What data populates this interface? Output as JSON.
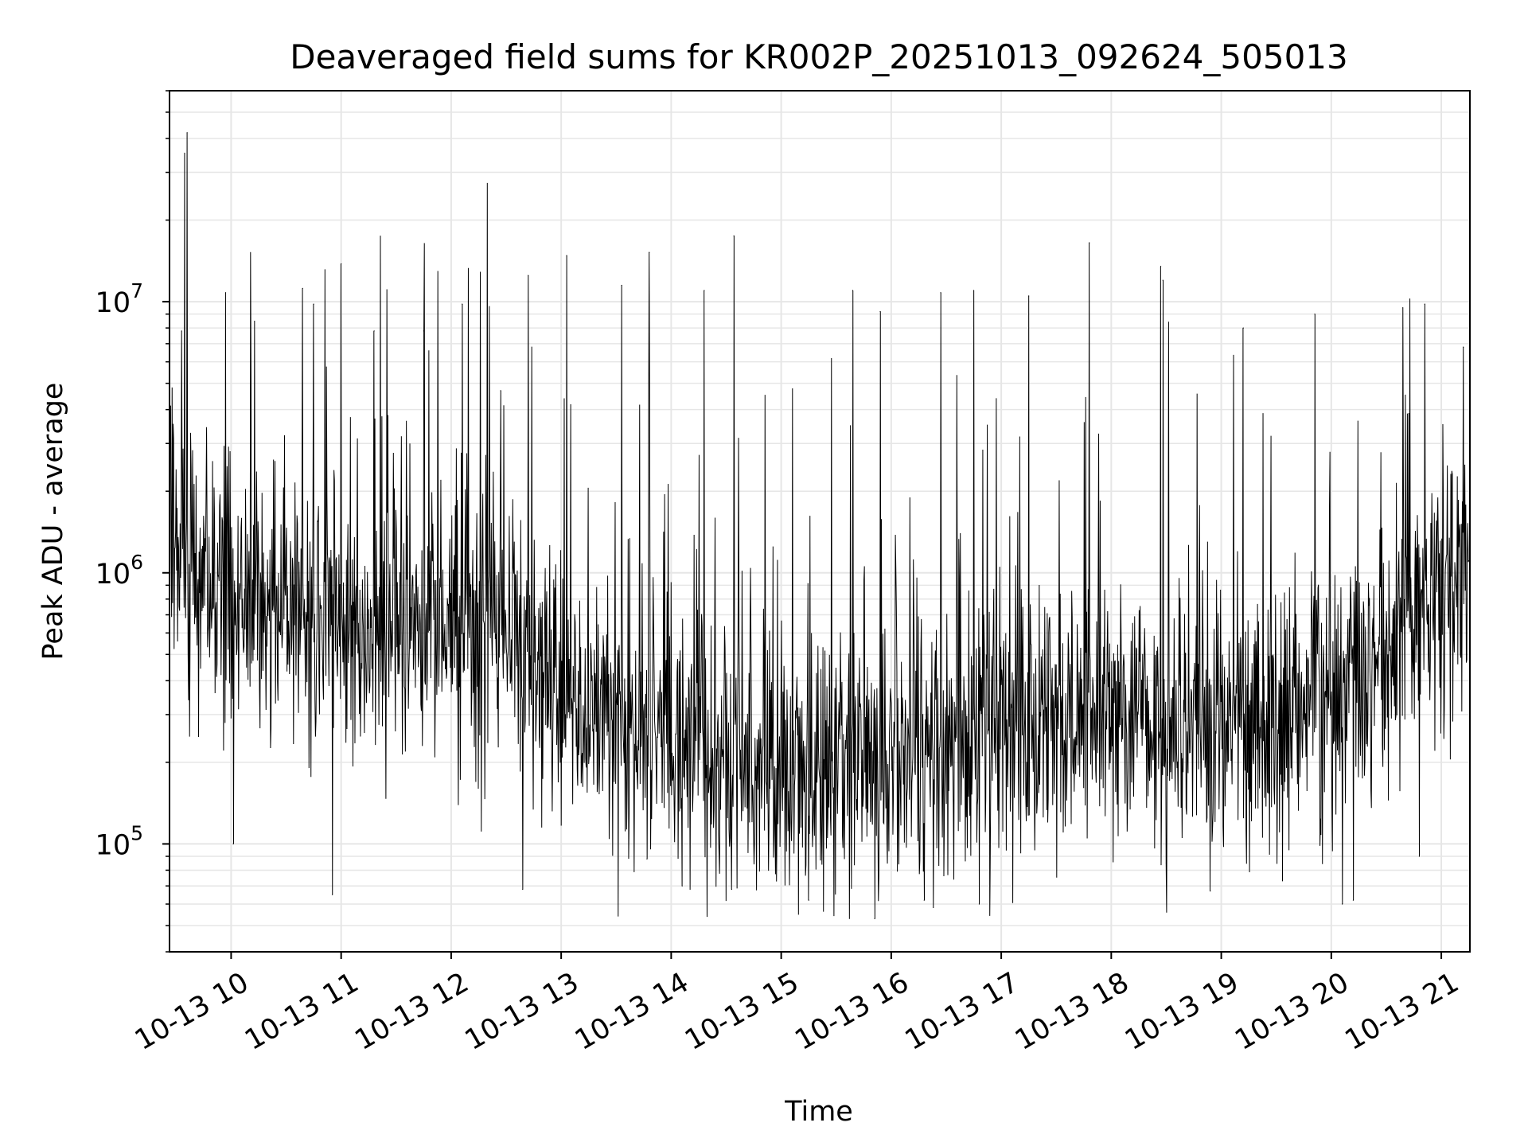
{
  "chart_data": {
    "type": "line",
    "title": "Deaveraged field sums for KR002P_20251013_092624_505013",
    "xlabel": "Time",
    "ylabel": "Peak ADU - average",
    "yscale": "log",
    "ylim": [
      40000,
      60000000
    ],
    "xlim_hours": [
      9.44,
      21.26
    ],
    "grid": true,
    "grid_color": "#e6e6e6",
    "line_color": "#000000",
    "x_ticks": [
      {
        "hour": 10,
        "label": "10-13 10"
      },
      {
        "hour": 11,
        "label": "10-13 11"
      },
      {
        "hour": 12,
        "label": "10-13 12"
      },
      {
        "hour": 13,
        "label": "10-13 13"
      },
      {
        "hour": 14,
        "label": "10-13 14"
      },
      {
        "hour": 15,
        "label": "10-13 15"
      },
      {
        "hour": 16,
        "label": "10-13 16"
      },
      {
        "hour": 17,
        "label": "10-13 17"
      },
      {
        "hour": 18,
        "label": "10-13 18"
      },
      {
        "hour": 19,
        "label": "10-13 19"
      },
      {
        "hour": 20,
        "label": "10-13 20"
      },
      {
        "hour": 21,
        "label": "10-13 21"
      }
    ],
    "y_major_ticks": [
      {
        "value": 100000,
        "base": "10",
        "exp": "5"
      },
      {
        "value": 1000000,
        "base": "10",
        "exp": "6"
      },
      {
        "value": 10000000,
        "base": "10",
        "exp": "7"
      }
    ],
    "baseline_profile": [
      {
        "hour": 9.45,
        "value": 1500000
      },
      {
        "hour": 9.6,
        "value": 1000000
      },
      {
        "hour": 10.0,
        "value": 850000
      },
      {
        "hour": 10.5,
        "value": 650000
      },
      {
        "hour": 11.0,
        "value": 700000
      },
      {
        "hour": 11.5,
        "value": 600000
      },
      {
        "hour": 12.0,
        "value": 650000
      },
      {
        "hour": 12.6,
        "value": 600000
      },
      {
        "hour": 13.0,
        "value": 350000
      },
      {
        "hour": 13.5,
        "value": 300000
      },
      {
        "hour": 14.0,
        "value": 250000
      },
      {
        "hour": 14.5,
        "value": 200000
      },
      {
        "hour": 15.0,
        "value": 180000
      },
      {
        "hour": 15.5,
        "value": 190000
      },
      {
        "hour": 16.0,
        "value": 200000
      },
      {
        "hour": 16.5,
        "value": 230000
      },
      {
        "hour": 17.0,
        "value": 280000
      },
      {
        "hour": 17.5,
        "value": 300000
      },
      {
        "hour": 18.0,
        "value": 290000
      },
      {
        "hour": 18.5,
        "value": 270000
      },
      {
        "hour": 19.0,
        "value": 250000
      },
      {
        "hour": 19.5,
        "value": 280000
      },
      {
        "hour": 20.0,
        "value": 350000
      },
      {
        "hour": 20.5,
        "value": 500000
      },
      {
        "hour": 21.0,
        "value": 900000
      },
      {
        "hour": 21.25,
        "value": 1300000
      }
    ],
    "peaks": [
      {
        "hour": 9.6,
        "value": 42000000
      },
      {
        "hour": 9.55,
        "value": 7800000
      },
      {
        "hour": 9.95,
        "value": 10800000
      },
      {
        "hour": 10.65,
        "value": 11200000
      },
      {
        "hour": 10.75,
        "value": 9800000
      },
      {
        "hour": 11.0,
        "value": 13800000
      },
      {
        "hour": 11.3,
        "value": 7800000
      },
      {
        "hour": 11.75,
        "value": 7800000
      },
      {
        "hour": 12.1,
        "value": 9800000
      },
      {
        "hour": 12.45,
        "value": 4700000
      },
      {
        "hour": 12.7,
        "value": 12500000
      },
      {
        "hour": 13.05,
        "value": 14800000
      },
      {
        "hour": 13.55,
        "value": 11500000
      },
      {
        "hour": 13.8,
        "value": 15200000
      },
      {
        "hour": 14.3,
        "value": 11000000
      },
      {
        "hour": 14.57,
        "value": 17500000
      },
      {
        "hour": 15.65,
        "value": 11000000
      },
      {
        "hour": 15.9,
        "value": 9200000
      },
      {
        "hour": 16.45,
        "value": 10800000
      },
      {
        "hour": 16.75,
        "value": 11000000
      },
      {
        "hour": 17.25,
        "value": 10500000
      },
      {
        "hour": 17.8,
        "value": 16500000
      },
      {
        "hour": 18.45,
        "value": 13500000
      },
      {
        "hour": 18.47,
        "value": 12000000
      },
      {
        "hour": 19.2,
        "value": 8000000
      },
      {
        "hour": 19.85,
        "value": 9000000
      },
      {
        "hour": 20.65,
        "value": 9500000
      },
      {
        "hour": 20.85,
        "value": 9800000
      },
      {
        "hour": 21.2,
        "value": 6800000
      }
    ],
    "troughs": [
      {
        "hour": 10.02,
        "value": 100000
      },
      {
        "hour": 10.92,
        "value": 65000
      },
      {
        "hour": 12.65,
        "value": 68000
      },
      {
        "hour": 13.78,
        "value": 88000
      },
      {
        "hour": 14.1,
        "value": 70000
      },
      {
        "hour": 14.55,
        "value": 68000
      },
      {
        "hour": 15.25,
        "value": 62000
      },
      {
        "hour": 15.85,
        "value": 53000
      },
      {
        "hour": 16.3,
        "value": 62000
      },
      {
        "hour": 16.8,
        "value": 60000
      },
      {
        "hour": 18.5,
        "value": 85000
      },
      {
        "hour": 18.9,
        "value": 67000
      },
      {
        "hour": 20.1,
        "value": 60000
      },
      {
        "hour": 20.2,
        "value": 62000
      },
      {
        "hour": 20.8,
        "value": 90000
      }
    ],
    "noise_spread_decades": 0.45,
    "num_samples": 2600
  }
}
